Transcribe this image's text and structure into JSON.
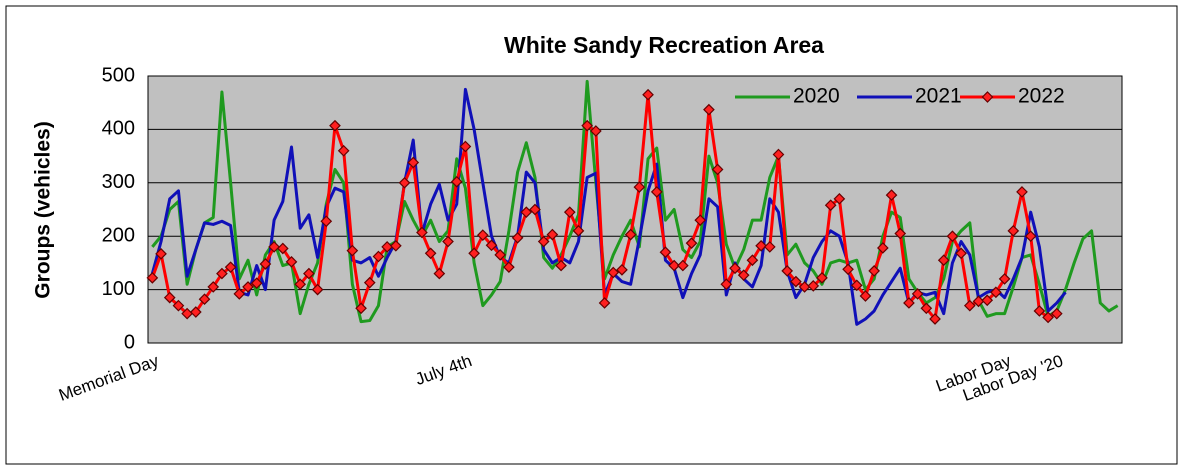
{
  "chart_data": {
    "type": "line",
    "title": "White Sandy Recreation Area",
    "y_label": "Groups (vehicles)",
    "categories": [
      "Memorial Day",
      null,
      null,
      null,
      null,
      null,
      null,
      null,
      null,
      null,
      null,
      null,
      null,
      null,
      null,
      null,
      null,
      null,
      null,
      null,
      null,
      null,
      null,
      null,
      null,
      null,
      null,
      null,
      null,
      null,
      null,
      null,
      null,
      null,
      null,
      null,
      "July 4th",
      null,
      null,
      null,
      null,
      null,
      null,
      null,
      null,
      null,
      null,
      null,
      null,
      null,
      null,
      null,
      null,
      null,
      null,
      null,
      null,
      null,
      null,
      null,
      null,
      null,
      null,
      null,
      null,
      null,
      null,
      null,
      null,
      null,
      null,
      null,
      null,
      null,
      null,
      null,
      null,
      null,
      null,
      null,
      null,
      null,
      null,
      null,
      null,
      null,
      null,
      null,
      null,
      null,
      null,
      null,
      null,
      null,
      null,
      null,
      null,
      null,
      "Labor Day",
      null,
      null,
      null,
      null,
      null,
      "Labor Day '20",
      null,
      null,
      null,
      null,
      null,
      null,
      null
    ],
    "series": [
      {
        "name": "2020",
        "color": "#1f9a1f",
        "marker": false,
        "values": [
          180,
          200,
          250,
          265,
          110,
          175,
          225,
          235,
          470,
          300,
          120,
          155,
          90,
          165,
          190,
          145,
          150,
          55,
          110,
          150,
          260,
          325,
          300,
          110,
          40,
          42,
          70,
          180,
          190,
          265,
          230,
          200,
          230,
          190,
          210,
          345,
          290,
          150,
          70,
          90,
          115,
          210,
          320,
          375,
          310,
          160,
          140,
          165,
          200,
          240,
          490,
          300,
          120,
          165,
          200,
          230,
          180,
          345,
          365,
          230,
          250,
          175,
          160,
          190,
          350,
          300,
          185,
          140,
          175,
          230,
          230,
          310,
          350,
          165,
          185,
          150,
          135,
          110,
          150,
          155,
          150,
          155,
          100,
          120,
          200,
          245,
          235,
          120,
          95,
          75,
          85,
          120,
          190,
          210,
          225,
          80,
          50,
          55,
          55,
          105,
          160,
          165,
          110,
          50,
          60,
          100,
          150,
          195,
          210,
          75,
          60,
          70
        ]
      },
      {
        "name": "2021",
        "color": "#1010b8",
        "marker": false,
        "values": [
          130,
          190,
          270,
          285,
          125,
          175,
          225,
          222,
          228,
          220,
          95,
          90,
          145,
          100,
          230,
          265,
          367,
          215,
          240,
          160,
          255,
          290,
          283,
          155,
          150,
          160,
          125,
          160,
          190,
          300,
          380,
          205,
          260,
          297,
          230,
          260,
          475,
          400,
          300,
          200,
          160,
          150,
          200,
          320,
          300,
          175,
          150,
          160,
          150,
          190,
          310,
          318,
          90,
          130,
          115,
          110,
          195,
          285,
          335,
          155,
          140,
          85,
          130,
          165,
          270,
          255,
          90,
          150,
          120,
          105,
          145,
          270,
          245,
          135,
          85,
          110,
          160,
          190,
          210,
          200,
          150,
          35,
          45,
          60,
          90,
          115,
          140,
          75,
          95,
          90,
          95,
          55,
          150,
          190,
          165,
          85,
          95,
          100,
          85,
          120,
          160,
          245,
          180,
          60,
          75,
          95,
          null,
          null,
          null,
          null,
          null,
          null
        ]
      },
      {
        "name": "2022",
        "color": "#ff0000",
        "marker": true,
        "values": [
          122,
          167,
          85,
          70,
          55,
          58,
          82,
          105,
          130,
          142,
          92,
          105,
          112,
          148,
          180,
          177,
          152,
          110,
          130,
          100,
          228,
          407,
          360,
          173,
          65,
          113,
          162,
          180,
          182,
          300,
          338,
          207,
          168,
          130,
          190,
          302,
          368,
          168,
          202,
          183,
          165,
          142,
          197,
          245,
          250,
          190,
          203,
          145,
          245,
          210,
          407,
          397,
          75,
          132,
          137,
          203,
          292,
          465,
          283,
          170,
          145,
          145,
          187,
          230,
          437,
          325,
          110,
          140,
          127,
          155,
          182,
          180,
          353,
          135,
          115,
          105,
          107,
          122,
          258,
          270,
          138,
          108,
          88,
          135,
          178,
          277,
          205,
          75,
          92,
          65,
          45,
          155,
          200,
          168,
          70,
          78,
          80,
          95,
          120,
          210,
          283,
          200,
          60,
          48,
          55,
          null,
          null,
          null,
          null,
          null,
          null,
          null
        ]
      }
    ],
    "ylim": [
      0,
      500
    ],
    "yticks": [
      0,
      100,
      200,
      300,
      400,
      500
    ],
    "grid": true,
    "legend": "top-right"
  }
}
